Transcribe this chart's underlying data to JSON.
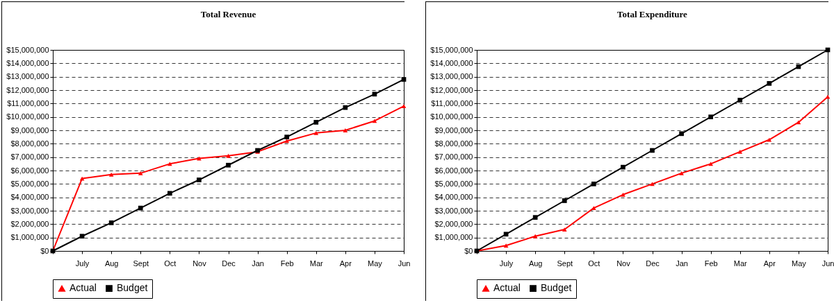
{
  "chart_data": [
    {
      "type": "line",
      "title": "Total Revenue",
      "categories": [
        null,
        "July",
        "Aug",
        "Sept",
        "Oct",
        "Nov",
        "Dec",
        "Jan",
        "Feb",
        "Mar",
        "Apr",
        "May",
        "Jun"
      ],
      "series": [
        {
          "name": "Actual",
          "color": "#ff0000",
          "marker": "triangle",
          "values": [
            0,
            5400000,
            5700000,
            5800000,
            6500000,
            6900000,
            7100000,
            7400000,
            8200000,
            8800000,
            9000000,
            9700000,
            10800000
          ]
        },
        {
          "name": "Budget",
          "color": "#000000",
          "marker": "square",
          "values": [
            0,
            1100000,
            2100000,
            3200000,
            4300000,
            5300000,
            6400000,
            7500000,
            8500000,
            9600000,
            10700000,
            11700000,
            12800000
          ]
        }
      ],
      "ylim": [
        0,
        15000000
      ],
      "yticks": [
        {
          "value": 0,
          "label": "$0"
        },
        {
          "value": 1000000,
          "label": "$1,000,000"
        },
        {
          "value": 2000000,
          "label": "$2,000,000"
        },
        {
          "value": 3000000,
          "label": "$3,000,000"
        },
        {
          "value": 4000000,
          "label": "$4,000,000"
        },
        {
          "value": 5000000,
          "label": "$5,000,000"
        },
        {
          "value": 6000000,
          "label": "$6,000,000"
        },
        {
          "value": 7000000,
          "label": "$7,000,000"
        },
        {
          "value": 8000000,
          "label": "$8,000,000"
        },
        {
          "value": 9000000,
          "label": "$9,000,000"
        },
        {
          "value": 10000000,
          "label": "$10,000,000"
        },
        {
          "value": 11000000,
          "label": "$11,000,000"
        },
        {
          "value": 12000000,
          "label": "$12,000,000"
        },
        {
          "value": 13000000,
          "label": "$13,000,000"
        },
        {
          "value": 14000000,
          "label": "$14,000,000"
        },
        {
          "value": 15000000,
          "label": "$15,000,000"
        }
      ],
      "grid": "y",
      "legend": "bottom",
      "line_style": "solid"
    },
    {
      "type": "line",
      "title": "Total Expenditure",
      "categories": [
        null,
        "July",
        "Aug",
        "Sept",
        "Oct",
        "Nov",
        "Dec",
        "Jan",
        "Feb",
        "Mar",
        "Apr",
        "May",
        "Jun"
      ],
      "series": [
        {
          "name": "Actual",
          "color": "#ff0000",
          "marker": "triangle",
          "values": [
            0,
            400000,
            1100000,
            1600000,
            3200000,
            4200000,
            5000000,
            5800000,
            6500000,
            7400000,
            8300000,
            9600000,
            11500000
          ]
        },
        {
          "name": "Budget",
          "color": "#000000",
          "marker": "square",
          "values": [
            0,
            1250000,
            2500000,
            3750000,
            5000000,
            6250000,
            7500000,
            8750000,
            10000000,
            11250000,
            12500000,
            13750000,
            15000000
          ]
        }
      ],
      "ylim": [
        0,
        15000000
      ],
      "yticks": [
        {
          "value": 0,
          "label": "$0"
        },
        {
          "value": 1000000,
          "label": "$1,000,000"
        },
        {
          "value": 2000000,
          "label": "$2,000,000"
        },
        {
          "value": 3000000,
          "label": "$3,000,000"
        },
        {
          "value": 4000000,
          "label": "$4,000,000"
        },
        {
          "value": 5000000,
          "label": "$5,000,000"
        },
        {
          "value": 6000000,
          "label": "$6,000,000"
        },
        {
          "value": 7000000,
          "label": "$7,000,000"
        },
        {
          "value": 8000000,
          "label": "$8,000,000"
        },
        {
          "value": 9000000,
          "label": "$9,000,000"
        },
        {
          "value": 10000000,
          "label": "$10,000,000"
        },
        {
          "value": 11000000,
          "label": "$11,000,000"
        },
        {
          "value": 12000000,
          "label": "$12,000,000"
        },
        {
          "value": 13000000,
          "label": "$13,000,000"
        },
        {
          "value": 14000000,
          "label": "$14,000,000"
        },
        {
          "value": 15000000,
          "label": "$15,000,000"
        }
      ],
      "grid": "y",
      "legend": "bottom",
      "line_style": "solid"
    }
  ]
}
